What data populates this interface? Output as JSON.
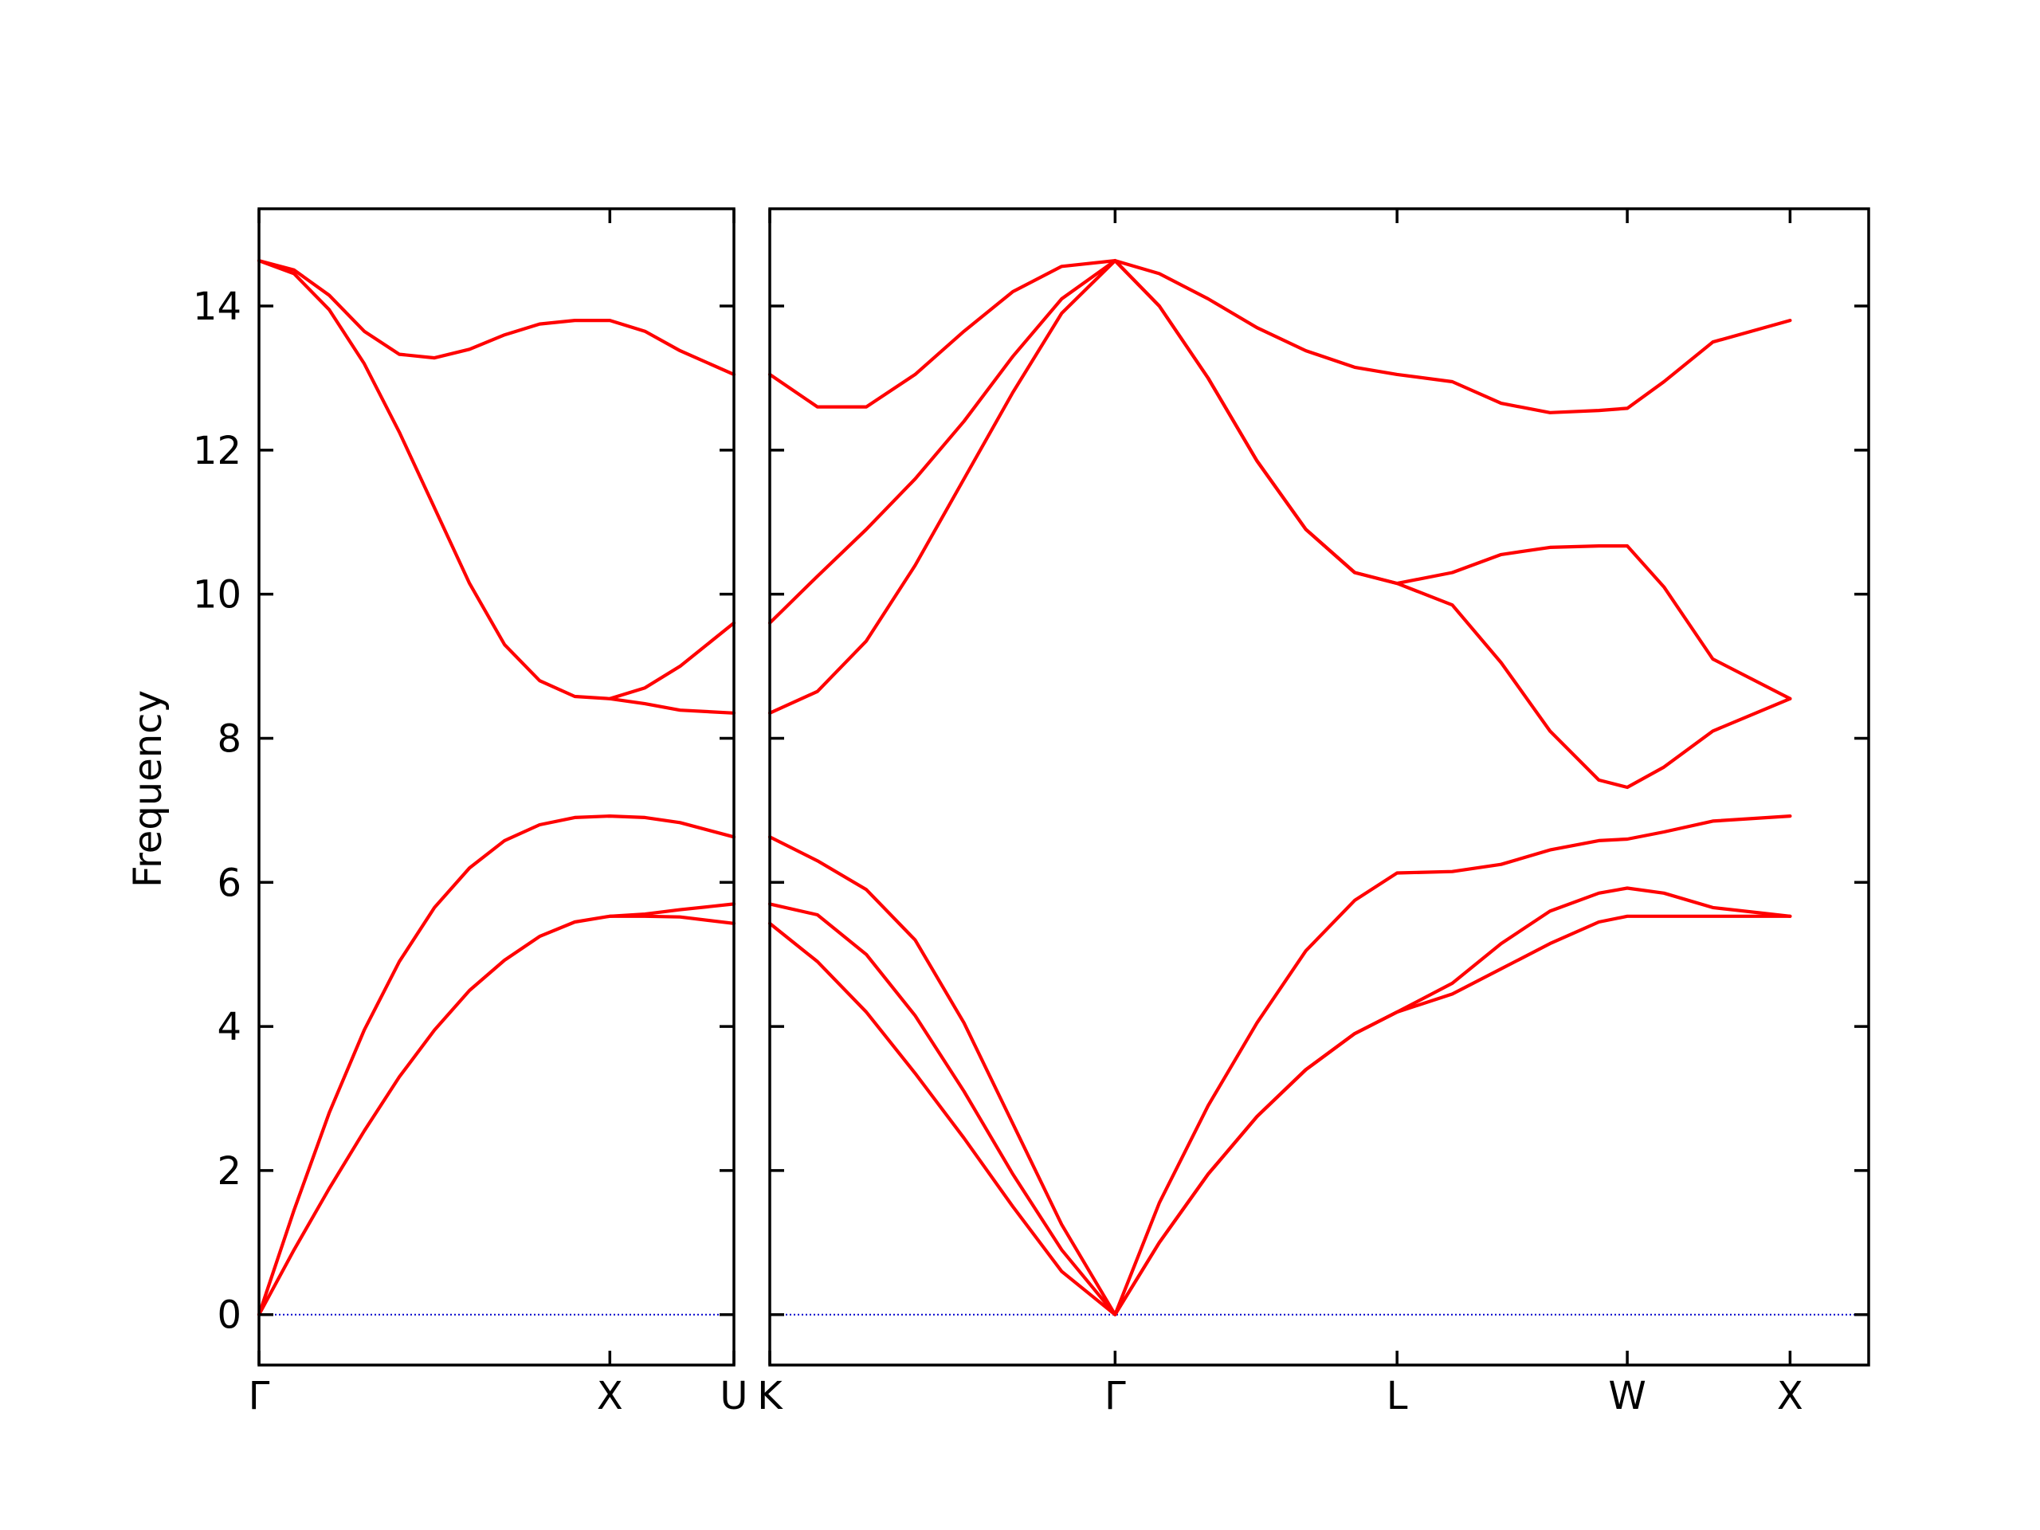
{
  "chart_data": {
    "type": "line",
    "ylabel": "Frequency",
    "ylim": [
      -0.7,
      15.35
    ],
    "yticks": [
      0,
      2,
      4,
      6,
      8,
      10,
      12,
      14
    ],
    "line_color": "#ff0000",
    "zero_line_color": "#0000cc",
    "grid": false,
    "panels": [
      {
        "xrange": [
          0,
          1.3536
        ],
        "xticks": [
          {
            "x": 0,
            "label": "Γ"
          },
          {
            "x": 1.0,
            "label": "X"
          },
          {
            "x": 1.3536,
            "label": "U"
          }
        ],
        "series": [
          {
            "x": [
              0,
              0.1,
              0.2,
              0.3,
              0.4,
              0.5,
              0.6,
              0.7,
              0.8,
              0.9,
              1.0,
              1.1,
              1.2,
              1.3536
            ],
            "y": [
              0,
              0.9,
              1.75,
              2.55,
              3.3,
              3.95,
              4.5,
              4.92,
              5.25,
              5.45,
              5.53,
              5.53,
              5.52,
              5.43
            ]
          },
          {
            "x": [
              0,
              0.1,
              0.2,
              0.3,
              0.4,
              0.5,
              0.6,
              0.7,
              0.8,
              0.9,
              1.0,
              1.1,
              1.2,
              1.3536
            ],
            "y": [
              0,
              1.45,
              2.8,
              3.95,
              4.9,
              5.65,
              6.2,
              6.58,
              6.8,
              6.9,
              6.92,
              6.9,
              6.83,
              6.63
            ]
          },
          {
            "x": [
              1.0,
              1.1,
              1.2,
              1.3536
            ],
            "y": [
              5.53,
              5.56,
              5.62,
              5.7
            ]
          },
          {
            "x": [
              0,
              0.1,
              0.2,
              0.3,
              0.4,
              0.5,
              0.6,
              0.7,
              0.8,
              0.9,
              1.0,
              1.1,
              1.2,
              1.3536
            ],
            "y": [
              14.63,
              14.45,
              13.95,
              13.2,
              12.25,
              11.2,
              10.15,
              9.3,
              8.8,
              8.58,
              8.55,
              8.48,
              8.39,
              8.35
            ]
          },
          {
            "x": [
              1.0,
              1.1,
              1.2,
              1.3536
            ],
            "y": [
              8.55,
              8.7,
              9.0,
              9.6
            ]
          },
          {
            "x": [
              0,
              0.1,
              0.2,
              0.3,
              0.4,
              0.5,
              0.6,
              0.7,
              0.8,
              0.9,
              1.0,
              1.1,
              1.2,
              1.3536
            ],
            "y": [
              14.63,
              14.5,
              14.15,
              13.65,
              13.33,
              13.28,
              13.4,
              13.6,
              13.75,
              13.8,
              13.8,
              13.65,
              13.38,
              13.05
            ]
          }
        ]
      },
      {
        "xrange": [
          1.3536,
          4.7287
        ],
        "xticks": [
          {
            "x": 1.3536,
            "label": "K"
          },
          {
            "x": 2.4142,
            "label": "Γ"
          },
          {
            "x": 3.2802,
            "label": "L"
          },
          {
            "x": 3.9873,
            "label": "W"
          },
          {
            "x": 4.4873,
            "label": "X"
          }
        ],
        "series": [
          {
            "x": [
              1.3536,
              1.5,
              1.65,
              1.8,
              1.95,
              2.1,
              2.25,
              2.4142,
              2.55,
              2.7,
              2.85,
              3.0,
              3.15,
              3.2802,
              3.45,
              3.6,
              3.75,
              3.9,
              3.9873,
              4.1,
              4.25,
              4.4873
            ],
            "y": [
              5.43,
              4.9,
              4.2,
              3.35,
              2.45,
              1.5,
              0.6,
              0,
              1.0,
              1.95,
              2.75,
              3.4,
              3.9,
              4.2,
              4.45,
              4.8,
              5.15,
              5.45,
              5.53,
              5.53,
              5.53,
              5.53
            ]
          },
          {
            "x": [
              1.3536,
              1.5,
              1.65,
              1.8,
              1.95,
              2.1,
              2.25,
              2.4142,
              2.55,
              2.7,
              2.85,
              3.0,
              3.15,
              3.2802,
              3.45,
              3.6,
              3.75,
              3.9,
              3.9873,
              4.1,
              4.25,
              4.4873
            ],
            "y": [
              5.7,
              5.55,
              5.0,
              4.15,
              3.1,
              1.95,
              0.9,
              0,
              1.0,
              1.95,
              2.75,
              3.4,
              3.9,
              4.2,
              4.6,
              5.15,
              5.6,
              5.85,
              5.92,
              5.85,
              5.65,
              5.53
            ]
          },
          {
            "x": [
              1.3536,
              1.5,
              1.65,
              1.8,
              1.95,
              2.1,
              2.25,
              2.4142,
              2.55,
              2.7,
              2.85,
              3.0,
              3.15,
              3.2802,
              3.45,
              3.6,
              3.75,
              3.9,
              3.9873,
              4.1,
              4.25,
              4.4873
            ],
            "y": [
              6.63,
              6.3,
              5.9,
              5.2,
              4.05,
              2.65,
              1.25,
              0,
              1.55,
              2.9,
              4.05,
              5.05,
              5.75,
              6.13,
              6.15,
              6.25,
              6.45,
              6.58,
              6.6,
              6.7,
              6.85,
              6.92
            ]
          },
          {
            "x": [
              1.3536,
              1.5,
              1.65,
              1.8,
              1.95,
              2.1,
              2.25,
              2.4142,
              2.55,
              2.7,
              2.85,
              3.0,
              3.15,
              3.2802,
              3.45,
              3.6,
              3.75,
              3.9,
              3.9873,
              4.1,
              4.25,
              4.4873
            ],
            "y": [
              8.35,
              8.65,
              9.35,
              10.4,
              11.6,
              12.8,
              13.9,
              14.63,
              14.0,
              13.0,
              11.85,
              10.9,
              10.3,
              10.15,
              9.85,
              9.05,
              8.1,
              7.42,
              7.32,
              7.6,
              8.1,
              8.55
            ]
          },
          {
            "x": [
              1.3536,
              1.5,
              1.65,
              1.8,
              1.95,
              2.1,
              2.25,
              2.4142,
              2.55,
              2.7,
              2.85,
              3.0,
              3.15,
              3.2802,
              3.45,
              3.6,
              3.75,
              3.9,
              3.9873,
              4.1,
              4.25,
              4.4873
            ],
            "y": [
              9.6,
              10.25,
              10.9,
              11.6,
              12.4,
              13.3,
              14.1,
              14.63,
              14.0,
              13.0,
              11.85,
              10.9,
              10.3,
              10.15,
              10.3,
              10.55,
              10.65,
              10.67,
              10.67,
              10.1,
              9.1,
              8.55
            ]
          },
          {
            "x": [
              1.3536,
              1.5,
              1.65,
              1.8,
              1.95,
              2.1,
              2.25,
              2.4142,
              2.55,
              2.7,
              2.85,
              3.0,
              3.15,
              3.2802,
              3.45,
              3.6,
              3.75,
              3.9,
              3.9873,
              4.1,
              4.25,
              4.4873
            ],
            "y": [
              13.05,
              12.6,
              12.6,
              13.05,
              13.65,
              14.2,
              14.55,
              14.63,
              14.45,
              14.1,
              13.7,
              13.38,
              13.15,
              13.05,
              12.95,
              12.65,
              12.52,
              12.55,
              12.58,
              12.95,
              13.5,
              13.8
            ]
          }
        ]
      }
    ]
  }
}
